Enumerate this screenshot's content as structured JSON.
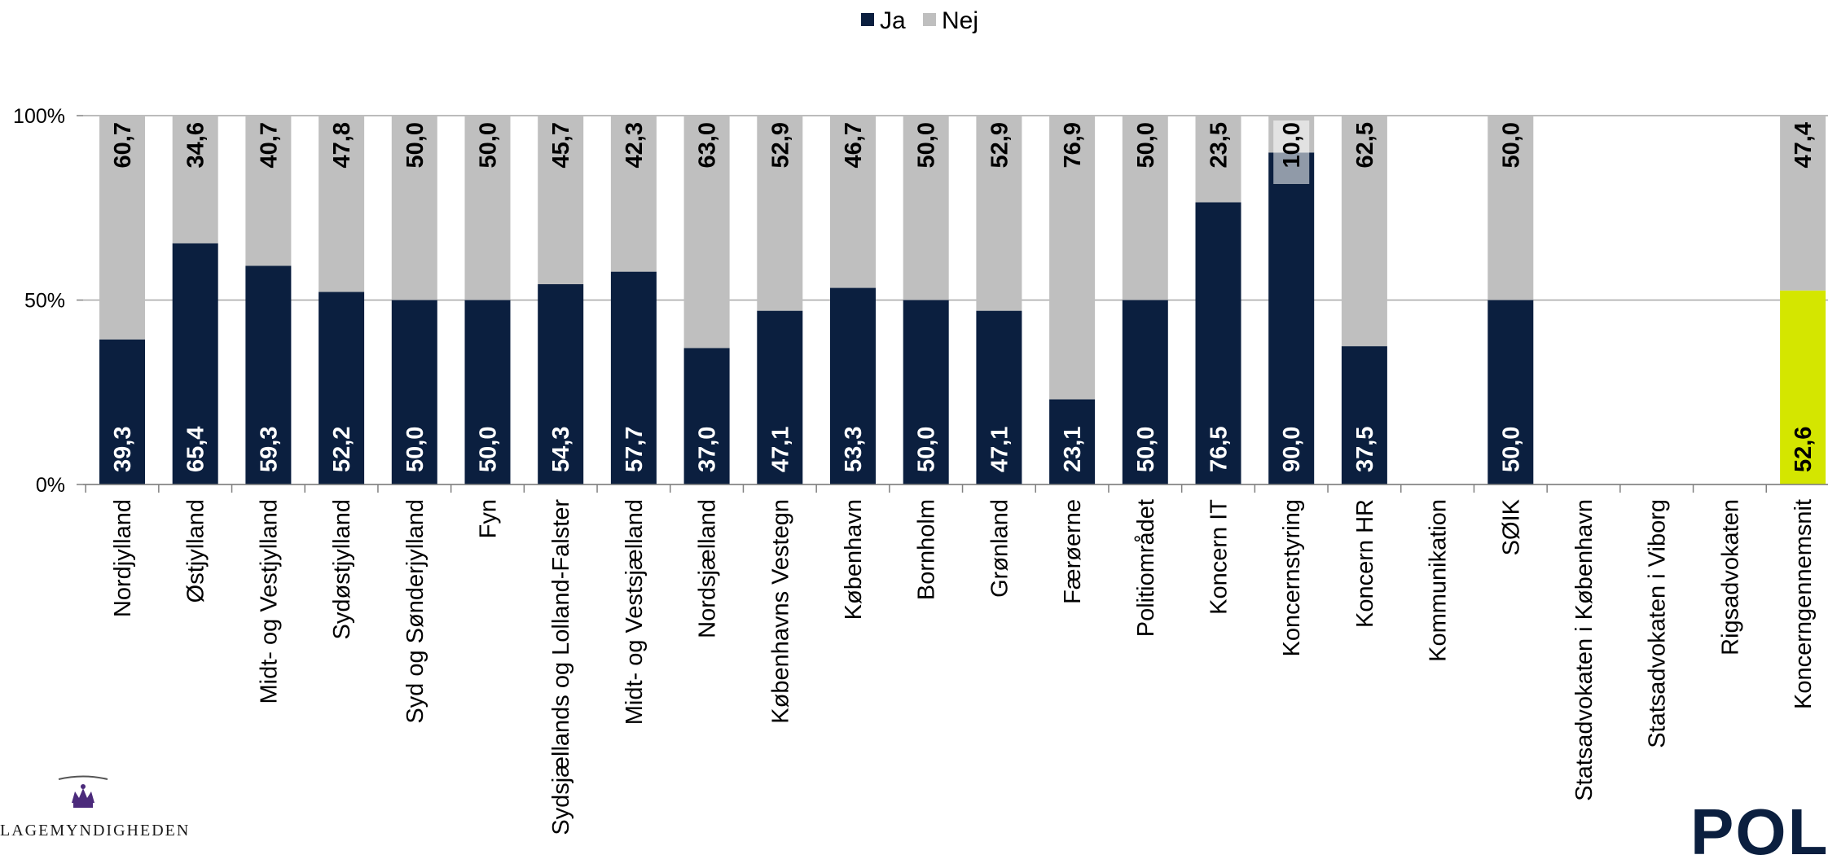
{
  "chart_data": {
    "type": "bar",
    "stacked": true,
    "percent": true,
    "title": "",
    "xlabel": "",
    "ylabel": "",
    "ylim": [
      0,
      100
    ],
    "yticks": [
      "0%",
      "50%",
      "100%"
    ],
    "legend": {
      "position": "top-center",
      "entries": [
        "Ja",
        "Nej"
      ]
    },
    "grid": true,
    "categories": [
      "Nordjylland",
      "Østjylland",
      "Midt- og Vestjylland",
      "Sydøstjylland",
      "Syd og Sønderjylland",
      "Fyn",
      "Sydsjællands og Lolland-Falster",
      "Midt- og Vestsjælland",
      "Nordsjælland",
      "Københavns Vestegn",
      "København",
      "Bornholm",
      "Grønland",
      "Færøerne",
      "Politiområdet",
      "Koncern IT",
      "Koncernstyring",
      "Koncern HR",
      "Kommunikation",
      "SØIK",
      "Statsadvokaten i København",
      "Statsadvokaten i Viborg",
      "Rigsadvokaten",
      "Koncerngennemsnit"
    ],
    "series": [
      {
        "name": "Ja",
        "color": "#0b1f3f",
        "values": [
          39.3,
          65.4,
          59.3,
          52.2,
          50.0,
          50.0,
          54.3,
          57.7,
          37.0,
          47.1,
          53.3,
          50.0,
          47.1,
          23.1,
          50.0,
          76.5,
          90.0,
          37.5,
          null,
          50.0,
          null,
          null,
          null,
          52.6
        ],
        "labels": [
          "39,3",
          "65,4",
          "59,3",
          "52,2",
          "50,0",
          "50,0",
          "54,3",
          "57,7",
          "37,0",
          "47,1",
          "53,3",
          "50,0",
          "47,1",
          "23,1",
          "50,0",
          "76,5",
          "90,0",
          "37,5",
          "",
          "50,0",
          "",
          "",
          "",
          "52,6"
        ]
      },
      {
        "name": "Nej",
        "color": "#bfbfbf",
        "values": [
          60.7,
          34.6,
          40.7,
          47.8,
          50.0,
          50.0,
          45.7,
          42.3,
          63.0,
          52.9,
          46.7,
          50.0,
          52.9,
          76.9,
          50.0,
          23.5,
          10.0,
          62.5,
          null,
          50.0,
          null,
          null,
          null,
          47.4
        ],
        "labels": [
          "60,7",
          "34,6",
          "40,7",
          "47,8",
          "50,0",
          "50,0",
          "45,7",
          "42,3",
          "63,0",
          "52,9",
          "46,7",
          "50,0",
          "52,9",
          "76,9",
          "50,0",
          "23,5",
          "10,0",
          "62,5",
          "",
          "50,0",
          "",
          "",
          "",
          "47,4"
        ]
      }
    ],
    "highlight": {
      "category_index": 23,
      "series": "Ja",
      "color": "#d4e600"
    }
  },
  "logos": {
    "left_text": "LAGEMYNDIGHEDEN",
    "right_text": "POLIT"
  }
}
